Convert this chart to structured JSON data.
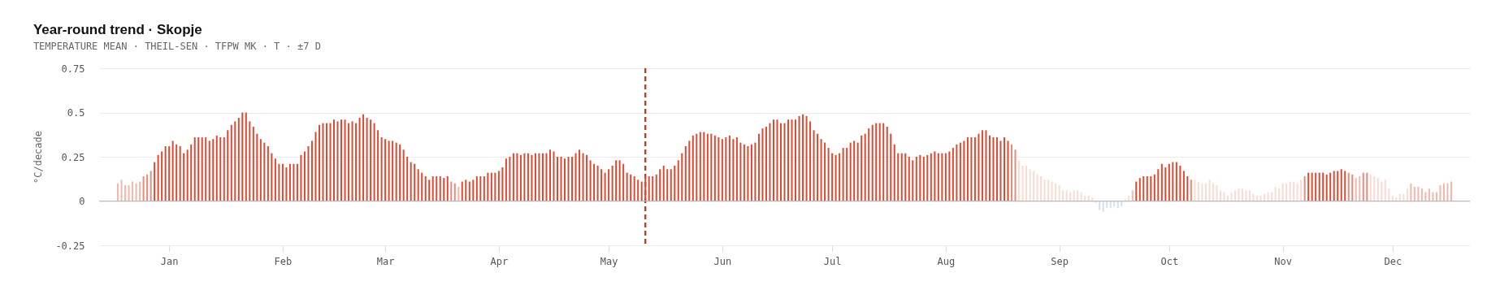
{
  "chart_data": {
    "type": "bar",
    "title": "Year-round trend · Skopje",
    "subtitle": "TEMPERATURE MEAN · THEIL-SEN · TFPW MK · T · ±7 D",
    "ylabel": "°C/decade",
    "categories": [
      null,
      null,
      null,
      null,
      null,
      null,
      null,
      null,
      null,
      null,
      null,
      null,
      null,
      null,
      "Jan",
      null,
      null,
      null,
      null,
      null,
      null,
      null,
      null,
      null,
      null,
      null,
      null,
      null,
      null,
      null,
      null,
      null,
      null,
      null,
      null,
      null,
      null,
      null,
      null,
      null,
      null,
      null,
      null,
      null,
      null,
      "Feb",
      null,
      null,
      null,
      null,
      null,
      null,
      null,
      null,
      null,
      null,
      null,
      null,
      null,
      null,
      null,
      null,
      null,
      null,
      null,
      null,
      null,
      null,
      null,
      null,
      null,
      null,
      null,
      "Mar",
      null,
      null,
      null,
      null,
      null,
      null,
      null,
      null,
      null,
      null,
      null,
      null,
      null,
      null,
      null,
      null,
      null,
      null,
      null,
      null,
      null,
      null,
      null,
      null,
      null,
      null,
      null,
      null,
      null,
      null,
      "Apr",
      null,
      null,
      null,
      null,
      null,
      null,
      null,
      null,
      null,
      null,
      null,
      null,
      null,
      null,
      null,
      null,
      null,
      null,
      null,
      null,
      null,
      null,
      null,
      null,
      null,
      null,
      null,
      null,
      null,
      "May",
      null,
      null,
      null,
      null,
      null,
      null,
      null,
      null,
      null,
      null,
      null,
      null,
      null,
      null,
      null,
      null,
      null,
      null,
      null,
      null,
      null,
      null,
      null,
      null,
      null,
      null,
      null,
      null,
      null,
      null,
      "Jun",
      null,
      null,
      null,
      null,
      null,
      null,
      null,
      null,
      null,
      null,
      null,
      null,
      null,
      null,
      null,
      null,
      null,
      null,
      null,
      null,
      null,
      null,
      null,
      null,
      null,
      null,
      null,
      null,
      null,
      "Jul",
      null,
      null,
      null,
      null,
      null,
      null,
      null,
      null,
      null,
      null,
      null,
      null,
      null,
      null,
      null,
      null,
      null,
      null,
      null,
      null,
      null,
      null,
      null,
      null,
      null,
      null,
      null,
      null,
      null,
      null,
      "Aug",
      null,
      null,
      null,
      null,
      null,
      null,
      null,
      null,
      null,
      null,
      null,
      null,
      null,
      null,
      null,
      null,
      null,
      null,
      null,
      null,
      null,
      null,
      null,
      null,
      null,
      null,
      null,
      null,
      null,
      null,
      "Sep",
      null,
      null,
      null,
      null,
      null,
      null,
      null,
      null,
      null,
      null,
      null,
      null,
      null,
      null,
      null,
      null,
      null,
      null,
      null,
      null,
      null,
      null,
      null,
      null,
      null,
      null,
      null,
      null,
      null,
      "Oct",
      null,
      null,
      null,
      null,
      null,
      null,
      null,
      null,
      null,
      null,
      null,
      null,
      null,
      null,
      null,
      null,
      null,
      null,
      null,
      null,
      null,
      null,
      null,
      null,
      null,
      null,
      null,
      null,
      null,
      null,
      "Nov",
      null,
      null,
      null,
      null,
      null,
      null,
      null,
      null,
      null,
      null,
      null,
      null,
      null,
      null,
      null,
      null,
      null,
      null,
      null,
      null,
      null,
      null,
      null,
      null,
      null,
      null,
      null,
      null,
      null,
      "Dec",
      null,
      null,
      null,
      null,
      null,
      null,
      null,
      null,
      null,
      null,
      null,
      null,
      null,
      null,
      null,
      null
    ],
    "values": [
      0.1,
      0.12,
      0.09,
      0.09,
      0.11,
      0.1,
      0.11,
      0.14,
      0.15,
      0.17,
      0.22,
      0.26,
      0.28,
      0.31,
      0.31,
      0.34,
      0.32,
      0.31,
      0.27,
      0.29,
      0.32,
      0.36,
      0.36,
      0.36,
      0.36,
      0.34,
      0.35,
      0.37,
      0.36,
      0.36,
      0.4,
      0.43,
      0.45,
      0.47,
      0.5,
      0.5,
      0.45,
      0.42,
      0.38,
      0.35,
      0.33,
      0.31,
      0.27,
      0.24,
      0.21,
      0.21,
      0.19,
      0.21,
      0.21,
      0.21,
      0.26,
      0.28,
      0.31,
      0.34,
      0.39,
      0.43,
      0.44,
      0.44,
      0.44,
      0.46,
      0.45,
      0.46,
      0.46,
      0.44,
      0.45,
      0.44,
      0.47,
      0.49,
      0.47,
      0.46,
      0.44,
      0.4,
      0.36,
      0.35,
      0.34,
      0.34,
      0.33,
      0.32,
      0.29,
      0.25,
      0.22,
      0.21,
      0.18,
      0.16,
      0.14,
      0.12,
      0.14,
      0.14,
      0.14,
      0.13,
      0.14,
      0.11,
      0.1,
      0.08,
      0.11,
      0.12,
      0.11,
      0.12,
      0.14,
      0.14,
      0.14,
      0.16,
      0.16,
      0.16,
      0.17,
      0.19,
      0.24,
      0.25,
      0.27,
      0.27,
      0.26,
      0.27,
      0.27,
      0.26,
      0.27,
      0.27,
      0.27,
      0.27,
      0.29,
      0.28,
      0.25,
      0.25,
      0.24,
      0.25,
      0.25,
      0.27,
      0.29,
      0.27,
      0.26,
      0.23,
      0.21,
      0.2,
      0.18,
      0.16,
      0.18,
      0.2,
      0.23,
      0.23,
      0.21,
      0.16,
      0.15,
      0.14,
      0.12,
      0.11,
      0.14,
      0.14,
      0.14,
      0.15,
      0.18,
      0.2,
      0.18,
      0.18,
      0.2,
      0.23,
      0.27,
      0.31,
      0.34,
      0.37,
      0.38,
      0.39,
      0.39,
      0.38,
      0.38,
      0.37,
      0.36,
      0.35,
      0.36,
      0.37,
      0.35,
      0.36,
      0.33,
      0.32,
      0.31,
      0.32,
      0.33,
      0.38,
      0.41,
      0.42,
      0.44,
      0.46,
      0.46,
      0.44,
      0.44,
      0.46,
      0.46,
      0.46,
      0.48,
      0.49,
      0.48,
      0.45,
      0.4,
      0.38,
      0.35,
      0.33,
      0.3,
      0.27,
      0.26,
      0.27,
      0.3,
      0.3,
      0.33,
      0.34,
      0.33,
      0.37,
      0.38,
      0.41,
      0.43,
      0.44,
      0.44,
      0.44,
      0.42,
      0.38,
      0.32,
      0.27,
      0.27,
      0.27,
      0.25,
      0.23,
      0.25,
      0.26,
      0.25,
      0.26,
      0.27,
      0.28,
      0.27,
      0.27,
      0.27,
      0.28,
      0.3,
      0.32,
      0.33,
      0.34,
      0.36,
      0.36,
      0.36,
      0.38,
      0.4,
      0.4,
      0.37,
      0.36,
      0.36,
      0.34,
      0.36,
      0.34,
      0.32,
      0.29,
      0.23,
      0.2,
      0.2,
      0.18,
      0.17,
      0.15,
      0.14,
      0.12,
      0.12,
      0.11,
      0.1,
      0.09,
      0.06,
      0.06,
      0.05,
      0.06,
      0.06,
      0.05,
      0.03,
      0.03,
      0.02,
      -0.01,
      -0.05,
      -0.06,
      -0.04,
      -0.04,
      -0.03,
      -0.04,
      -0.03,
      0.01,
      0.03,
      0.06,
      0.11,
      0.13,
      0.14,
      0.14,
      0.14,
      0.15,
      0.18,
      0.21,
      0.19,
      0.21,
      0.22,
      0.22,
      0.2,
      0.17,
      0.14,
      0.12,
      0.12,
      0.11,
      0.1,
      0.1,
      0.12,
      0.1,
      0.09,
      0.06,
      0.05,
      0.03,
      0.05,
      0.06,
      0.07,
      0.07,
      0.06,
      0.06,
      0.04,
      0.03,
      0.03,
      0.04,
      0.05,
      0.05,
      0.08,
      0.07,
      0.1,
      0.1,
      0.11,
      0.11,
      0.1,
      0.12,
      0.14,
      0.16,
      0.16,
      0.16,
      0.16,
      0.16,
      0.15,
      0.16,
      0.17,
      0.17,
      0.18,
      0.17,
      0.16,
      0.15,
      0.13,
      0.14,
      0.16,
      0.16,
      0.15,
      0.14,
      0.13,
      0.11,
      0.12,
      0.07,
      0.03,
      0.02,
      0.04,
      0.04,
      0.07,
      0.1,
      0.08,
      0.08,
      0.07,
      0.05,
      0.07,
      0.05,
      0.05,
      0.09,
      0.1,
      0.1,
      0.11
    ],
    "colors": [
      "#f3b6aa",
      "#f3b6aa",
      "#f3b6aa",
      "#f3b6aa",
      "#f3b6aa",
      "#f3b6aa",
      "#f3b6aa",
      "#ea8a7b",
      "#ea8a7b",
      "#ea8a7b",
      "#dd4a33",
      "#dd4a33",
      "#dd4a33",
      "#dd4a33",
      "#dd4a33",
      "#dd4a33",
      "#dd4a33",
      "#dd4a33",
      "#dd4a33",
      "#dd4a33",
      "#dd4a33",
      "#dd4a33",
      "#dd4a33",
      "#dd4a33",
      "#dd4a33",
      "#dd4a33",
      "#dd4a33",
      "#dd4a33",
      "#dd4a33",
      "#dd4a33",
      "#dd4a33",
      "#dd4a33",
      "#dd4a33",
      "#dd4a33",
      "#dd4a33",
      "#dd4a33",
      "#dd4a33",
      "#dd4a33",
      "#dd4a33",
      "#dd4a33",
      "#dd4a33",
      "#dd4a33",
      "#dd4a33",
      "#dd4a33",
      "#dd4a33",
      "#dd4a33",
      "#dd4a33",
      "#dd4a33",
      "#dd4a33",
      "#dd4a33",
      "#dd4a33",
      "#dd4a33",
      "#dd4a33",
      "#dd4a33",
      "#dd4a33",
      "#dd4a33",
      "#dd4a33",
      "#dd4a33",
      "#dd4a33",
      "#dd4a33",
      "#dd4a33",
      "#dd4a33",
      "#dd4a33",
      "#dd4a33",
      "#dd4a33",
      "#dd4a33",
      "#dd4a33",
      "#dd4a33",
      "#dd4a33",
      "#dd4a33",
      "#dd4a33",
      "#dd4a33",
      "#dd4a33",
      "#dd4a33",
      "#dd4a33",
      "#dd4a33",
      "#dd4a33",
      "#dd4a33",
      "#dd4a33",
      "#dd4a33",
      "#dd4a33",
      "#dd4a33",
      "#dd4a33",
      "#dd4a33",
      "#dd4a33",
      "#dd4a33",
      "#dd4a33",
      "#dd4a33",
      "#dd4a33",
      "#dd4a33",
      "#dd4a33",
      "#ea8a7b",
      "#ea8a7b",
      "#f3b6aa",
      "#dd4a33",
      "#dd4a33",
      "#dd4a33",
      "#dd4a33",
      "#dd4a33",
      "#dd4a33",
      "#dd4a33",
      "#dd4a33",
      "#dd4a33",
      "#dd4a33",
      "#dd4a33",
      "#dd4a33",
      "#dd4a33",
      "#dd4a33",
      "#dd4a33",
      "#dd4a33",
      "#dd4a33",
      "#dd4a33",
      "#dd4a33",
      "#dd4a33",
      "#dd4a33",
      "#dd4a33",
      "#dd4a33",
      "#dd4a33",
      "#dd4a33",
      "#dd4a33",
      "#dd4a33",
      "#dd4a33",
      "#dd4a33",
      "#dd4a33",
      "#dd4a33",
      "#dd4a33",
      "#dd4a33",
      "#dd4a33",
      "#dd4a33",
      "#dd4a33",
      "#dd4a33",
      "#dd4a33",
      "#dd4a33",
      "#dd4a33",
      "#dd4a33",
      "#dd4a33",
      "#dd4a33",
      "#dd4a33",
      "#dd4a33",
      "#dd4a33",
      "#dd4a33",
      "#dd4a33",
      "#dd4a33",
      "#dd4a33",
      "#dd4a33",
      "#dd4a33",
      "#dd4a33",
      "#dd4a33",
      "#dd4a33",
      "#dd4a33",
      "#dd4a33",
      "#dd4a33",
      "#dd4a33",
      "#dd4a33",
      "#dd4a33",
      "#dd4a33",
      "#dd4a33",
      "#dd4a33",
      "#dd4a33",
      "#dd4a33",
      "#dd4a33",
      "#dd4a33",
      "#dd4a33",
      "#dd4a33",
      "#dd4a33",
      "#dd4a33",
      "#dd4a33",
      "#dd4a33",
      "#dd4a33",
      "#dd4a33",
      "#dd4a33",
      "#dd4a33",
      "#dd4a33",
      "#dd4a33",
      "#dd4a33",
      "#dd4a33",
      "#dd4a33",
      "#dd4a33",
      "#dd4a33",
      "#dd4a33",
      "#dd4a33",
      "#dd4a33",
      "#dd4a33",
      "#dd4a33",
      "#dd4a33",
      "#dd4a33",
      "#dd4a33",
      "#dd4a33",
      "#dd4a33",
      "#dd4a33",
      "#dd4a33",
      "#dd4a33",
      "#dd4a33",
      "#dd4a33",
      "#dd4a33",
      "#dd4a33",
      "#dd4a33",
      "#dd4a33",
      "#dd4a33",
      "#dd4a33",
      "#dd4a33",
      "#dd4a33",
      "#dd4a33",
      "#dd4a33",
      "#dd4a33",
      "#dd4a33",
      "#dd4a33",
      "#dd4a33",
      "#dd4a33",
      "#dd4a33",
      "#dd4a33",
      "#dd4a33",
      "#dd4a33",
      "#dd4a33",
      "#dd4a33",
      "#dd4a33",
      "#dd4a33",
      "#dd4a33",
      "#dd4a33",
      "#dd4a33",
      "#dd4a33",
      "#dd4a33",
      "#dd4a33",
      "#dd4a33",
      "#dd4a33",
      "#dd4a33",
      "#dd4a33",
      "#dd4a33",
      "#dd4a33",
      "#dd4a33",
      "#dd4a33",
      "#dd4a33",
      "#dd4a33",
      "#dd4a33",
      "#dd4a33",
      "#dd4a33",
      "#dd4a33",
      "#dd4a33",
      "#dd4a33",
      "#dd4a33",
      "#dd4a33",
      "#dd4a33",
      "#dd4a33",
      "#dd4a33",
      "#ea8a7b",
      "#ea8a7b",
      "#fadbd4",
      "#fadbd4",
      "#fadbd4",
      "#fadbd4",
      "#fadbd4",
      "#fadbd4",
      "#fadbd4",
      "#fadbd4",
      "#fadbd4",
      "#fadbd4",
      "#fadbd4",
      "#fadbd4",
      "#fadbd4",
      "#fadbd4",
      "#fadbd4",
      "#fadbd4",
      "#fadbd4",
      "#fadbd4",
      "#fadbd4",
      "#fadbd4",
      "#fadbd4",
      "#d4def2",
      "#d4def2",
      "#d4def2",
      "#d4def2",
      "#d4def2",
      "#d4def2",
      "#d4def2",
      "#d4def2",
      "#fadbd4",
      "#fadbd4",
      "#f3b6aa",
      "#dd4a33",
      "#dd4a33",
      "#dd4a33",
      "#dd4a33",
      "#dd4a33",
      "#dd4a33",
      "#dd4a33",
      "#dd4a33",
      "#dd4a33",
      "#dd4a33",
      "#dd4a33",
      "#dd4a33",
      "#dd4a33",
      "#dd4a33",
      "#dd4a33",
      "#ea8a7b",
      "#fadbd4",
      "#fadbd4",
      "#fadbd4",
      "#fadbd4",
      "#fadbd4",
      "#fadbd4",
      "#fadbd4",
      "#fadbd4",
      "#fadbd4",
      "#fadbd4",
      "#fadbd4",
      "#fadbd4",
      "#fadbd4",
      "#fadbd4",
      "#fadbd4",
      "#fadbd4",
      "#fadbd4",
      "#fadbd4",
      "#fadbd4",
      "#fadbd4",
      "#fadbd4",
      "#fadbd4",
      "#fadbd4",
      "#fadbd4",
      "#fadbd4",
      "#fadbd4",
      "#fadbd4",
      "#fadbd4",
      "#fadbd4",
      "#fadbd4",
      "#ea8a7b",
      "#dd4a33",
      "#dd4a33",
      "#dd4a33",
      "#dd4a33",
      "#dd4a33",
      "#dd4a33",
      "#dd4a33",
      "#dd4a33",
      "#dd4a33",
      "#dd4a33",
      "#dd4a33",
      "#ea8a7b",
      "#ea8a7b",
      "#f3b6aa",
      "#f3b6aa",
      "#ea8a7b",
      "#ea8a7b",
      "#fadbd4",
      "#fadbd4",
      "#fadbd4",
      "#fadbd4",
      "#fadbd4",
      "#fadbd4",
      "#fadbd4",
      "#fadbd4",
      "#fadbd4",
      "#fadbd4",
      "#fadbd4",
      "#f3b6aa",
      "#f3b6aa",
      "#f3b6aa",
      "#f3b6aa",
      "#f3b6aa",
      "#f3b6aa",
      "#f3b6aa",
      "#f3b6aa",
      "#f3b6aa",
      "#f3b6aa",
      "#f3b6aa",
      "#f3b6aa"
    ],
    "ylim": [
      -0.25,
      0.75
    ],
    "yticks": [
      -0.25,
      0,
      0.25,
      0.5,
      0.75
    ],
    "grid": "y"
  }
}
